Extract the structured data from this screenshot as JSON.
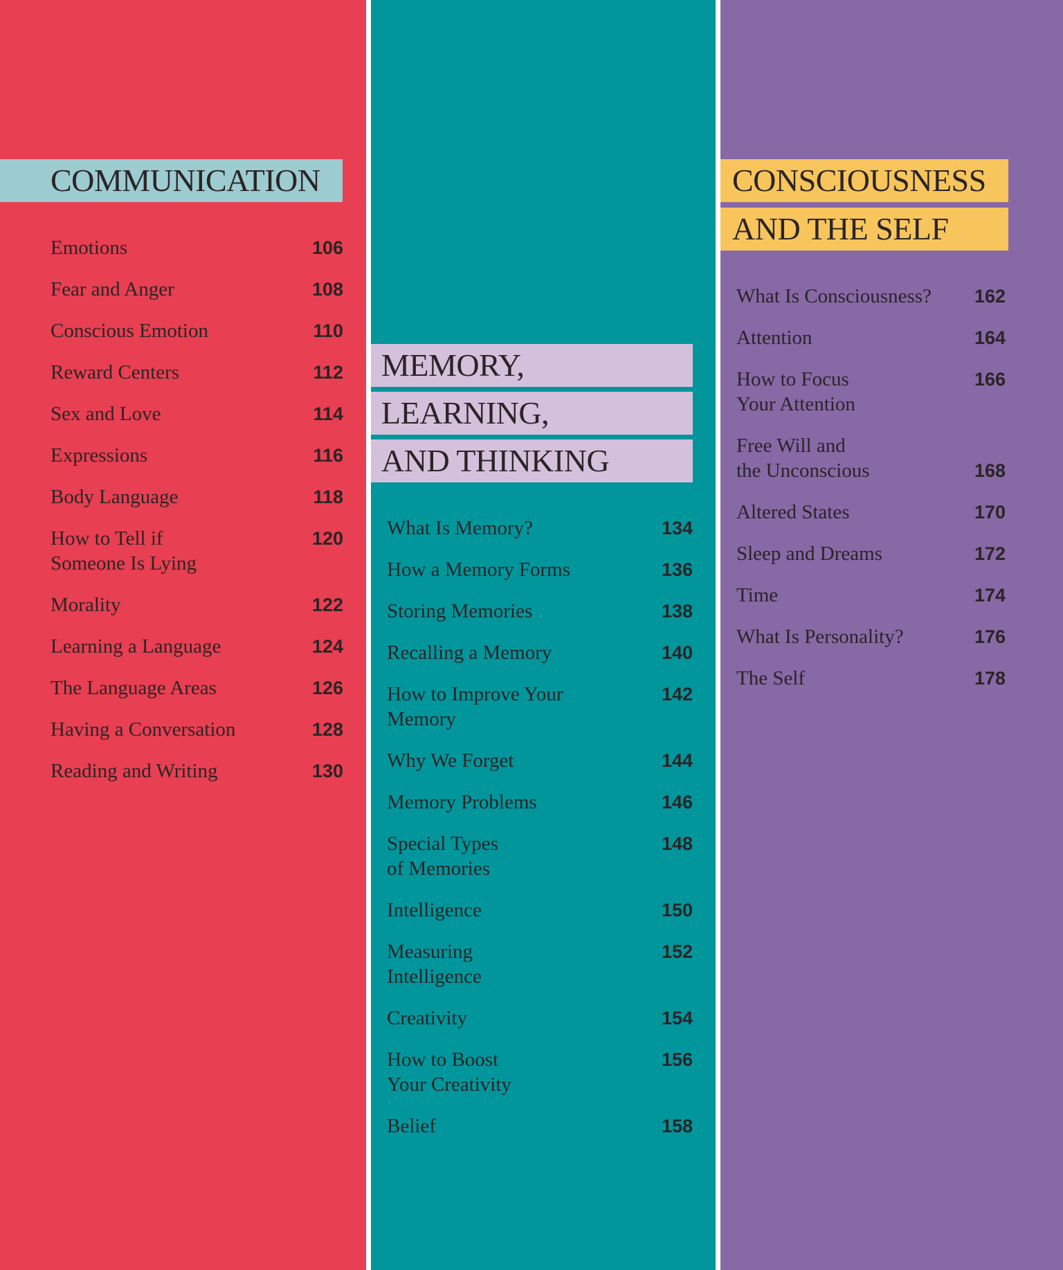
{
  "colors": {
    "communication": "#E83F52",
    "memory": "#00969C",
    "consciousness": "#8769A6",
    "communication_banner": "#9CCBD0",
    "memory_banner": "#D5C0DC",
    "consciousness_banner": "#F7C55C"
  },
  "sections": [
    {
      "title_lines": [
        "COMMUNICATION"
      ],
      "items": [
        {
          "title": "Emotions",
          "page": "106"
        },
        {
          "title": "Fear and Anger",
          "page": "108"
        },
        {
          "title": "Conscious Emotion",
          "page": "110"
        },
        {
          "title": "Reward Centers",
          "page": "112"
        },
        {
          "title": "Sex and Love",
          "page": "114"
        },
        {
          "title": "Expressions",
          "page": "116"
        },
        {
          "title": "Body Language",
          "page": "118"
        },
        {
          "title": "How to Tell if\nSomeone Is Lying",
          "page": "120"
        },
        {
          "title": "Morality",
          "page": "122"
        },
        {
          "title": "Learning a Language",
          "page": "124"
        },
        {
          "title": "The Language Areas",
          "page": "126"
        },
        {
          "title": "Having a Conversation",
          "page": "128"
        },
        {
          "title": "Reading and Writing",
          "page": "130"
        }
      ]
    },
    {
      "title_lines": [
        "MEMORY,",
        "LEARNING,",
        "AND THINKING"
      ],
      "items": [
        {
          "title": "What Is Memory?",
          "page": "134"
        },
        {
          "title": "How a Memory Forms",
          "page": "136"
        },
        {
          "title": "Storing Memories",
          "page": "138"
        },
        {
          "title": "Recalling a Memory",
          "page": "140"
        },
        {
          "title": "How to Improve Your\nMemory",
          "page": "142"
        },
        {
          "title": "Why We Forget",
          "page": "144"
        },
        {
          "title": "Memory Problems",
          "page": "146"
        },
        {
          "title": "Special Types\nof Memories",
          "page": "148"
        },
        {
          "title": "Intelligence",
          "page": "150"
        },
        {
          "title": "Measuring\nIntelligence",
          "page": "152"
        },
        {
          "title": "Creativity",
          "page": "154"
        },
        {
          "title": "How to Boost\nYour Creativity",
          "page": "156"
        },
        {
          "title": "Belief",
          "page": "158"
        }
      ]
    },
    {
      "title_lines": [
        "CONSCIOUSNESS",
        "AND THE SELF"
      ],
      "items": [
        {
          "title": "What Is Consciousness?",
          "page": "162"
        },
        {
          "title": "Attention",
          "page": "164"
        },
        {
          "title": "How to Focus\nYour Attention",
          "page": "166"
        },
        {
          "title": "Free Will and\nthe Unconscious",
          "page": "168"
        },
        {
          "title": "Altered States",
          "page": "170"
        },
        {
          "title": "Sleep and Dreams",
          "page": "172"
        },
        {
          "title": "Time",
          "page": "174"
        },
        {
          "title": "What Is Personality?",
          "page": "176"
        },
        {
          "title": "The Self",
          "page": "178"
        }
      ]
    }
  ]
}
